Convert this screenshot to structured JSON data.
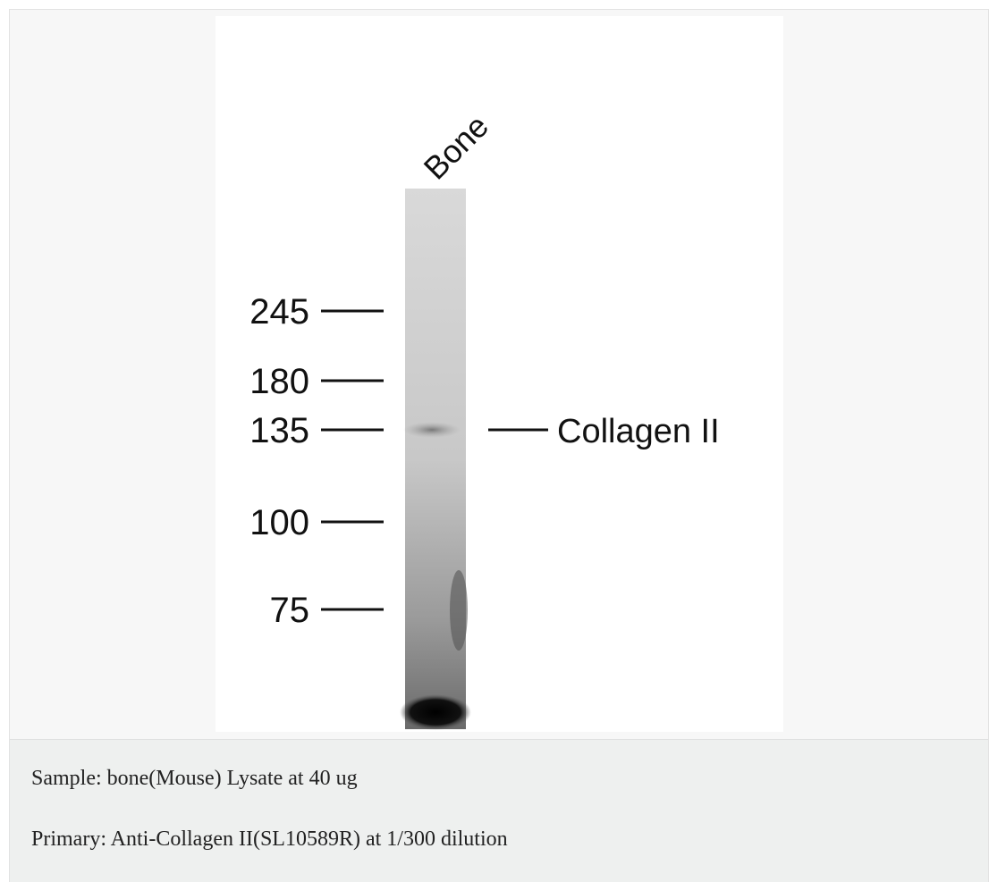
{
  "figure": {
    "lane_label": "Bone",
    "markers": [
      245,
      180,
      135,
      100,
      75
    ],
    "band_label": "Collagen II"
  },
  "caption": {
    "lines": [
      "Sample: bone(Mouse) Lysate at 40 ug",
      "Primary: Anti-Collagen II(SL10589R) at 1/300 dilution"
    ]
  }
}
